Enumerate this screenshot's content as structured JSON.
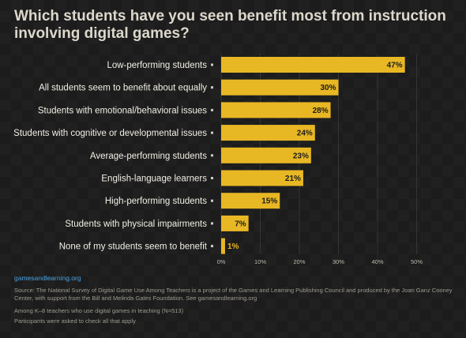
{
  "title": "Which students have you seen benefit most from instruction involving digital games?",
  "brand": "gamesandlearning.org",
  "notes": [
    "Source: The National Survey of Digital Game Use Among Teachers is a project of the Games and Learning Publishing Council and produced by the Joan Ganz Cooney Center, with support from the Bill and Melinda Gates Foundation. See gamesandlearning.org",
    "Among K–8 teachers who use digital games in teaching (N=513)",
    "Participants were asked to check all that apply"
  ],
  "colors": {
    "bar": "#e8b724",
    "background": "#1c1c1c",
    "grid": "#3a3a3a"
  },
  "chart_data": {
    "type": "bar",
    "orientation": "horizontal",
    "title": "Which students have you seen benefit most from instruction involving digital games?",
    "categories": [
      "Low-performing students",
      "All students seem to benefit about equally",
      "Students with emotional/behavioral issues",
      "Students with cognitive or developmental issues",
      "Average-performing students",
      "English-language learners",
      "High-performing students",
      "Students with physical impairments",
      "None of my students seem to benefit"
    ],
    "values": [
      47,
      30,
      28,
      24,
      23,
      21,
      15,
      7,
      1
    ],
    "value_labels": [
      "47%",
      "30%",
      "28%",
      "24%",
      "23%",
      "21%",
      "15%",
      "7%",
      "1%"
    ],
    "xticks": [
      "0%",
      "10%",
      "20%",
      "30%",
      "40%",
      "50%"
    ],
    "xtick_values": [
      0,
      10,
      20,
      30,
      40,
      50
    ],
    "xlim": [
      0,
      58
    ],
    "grid": true
  }
}
